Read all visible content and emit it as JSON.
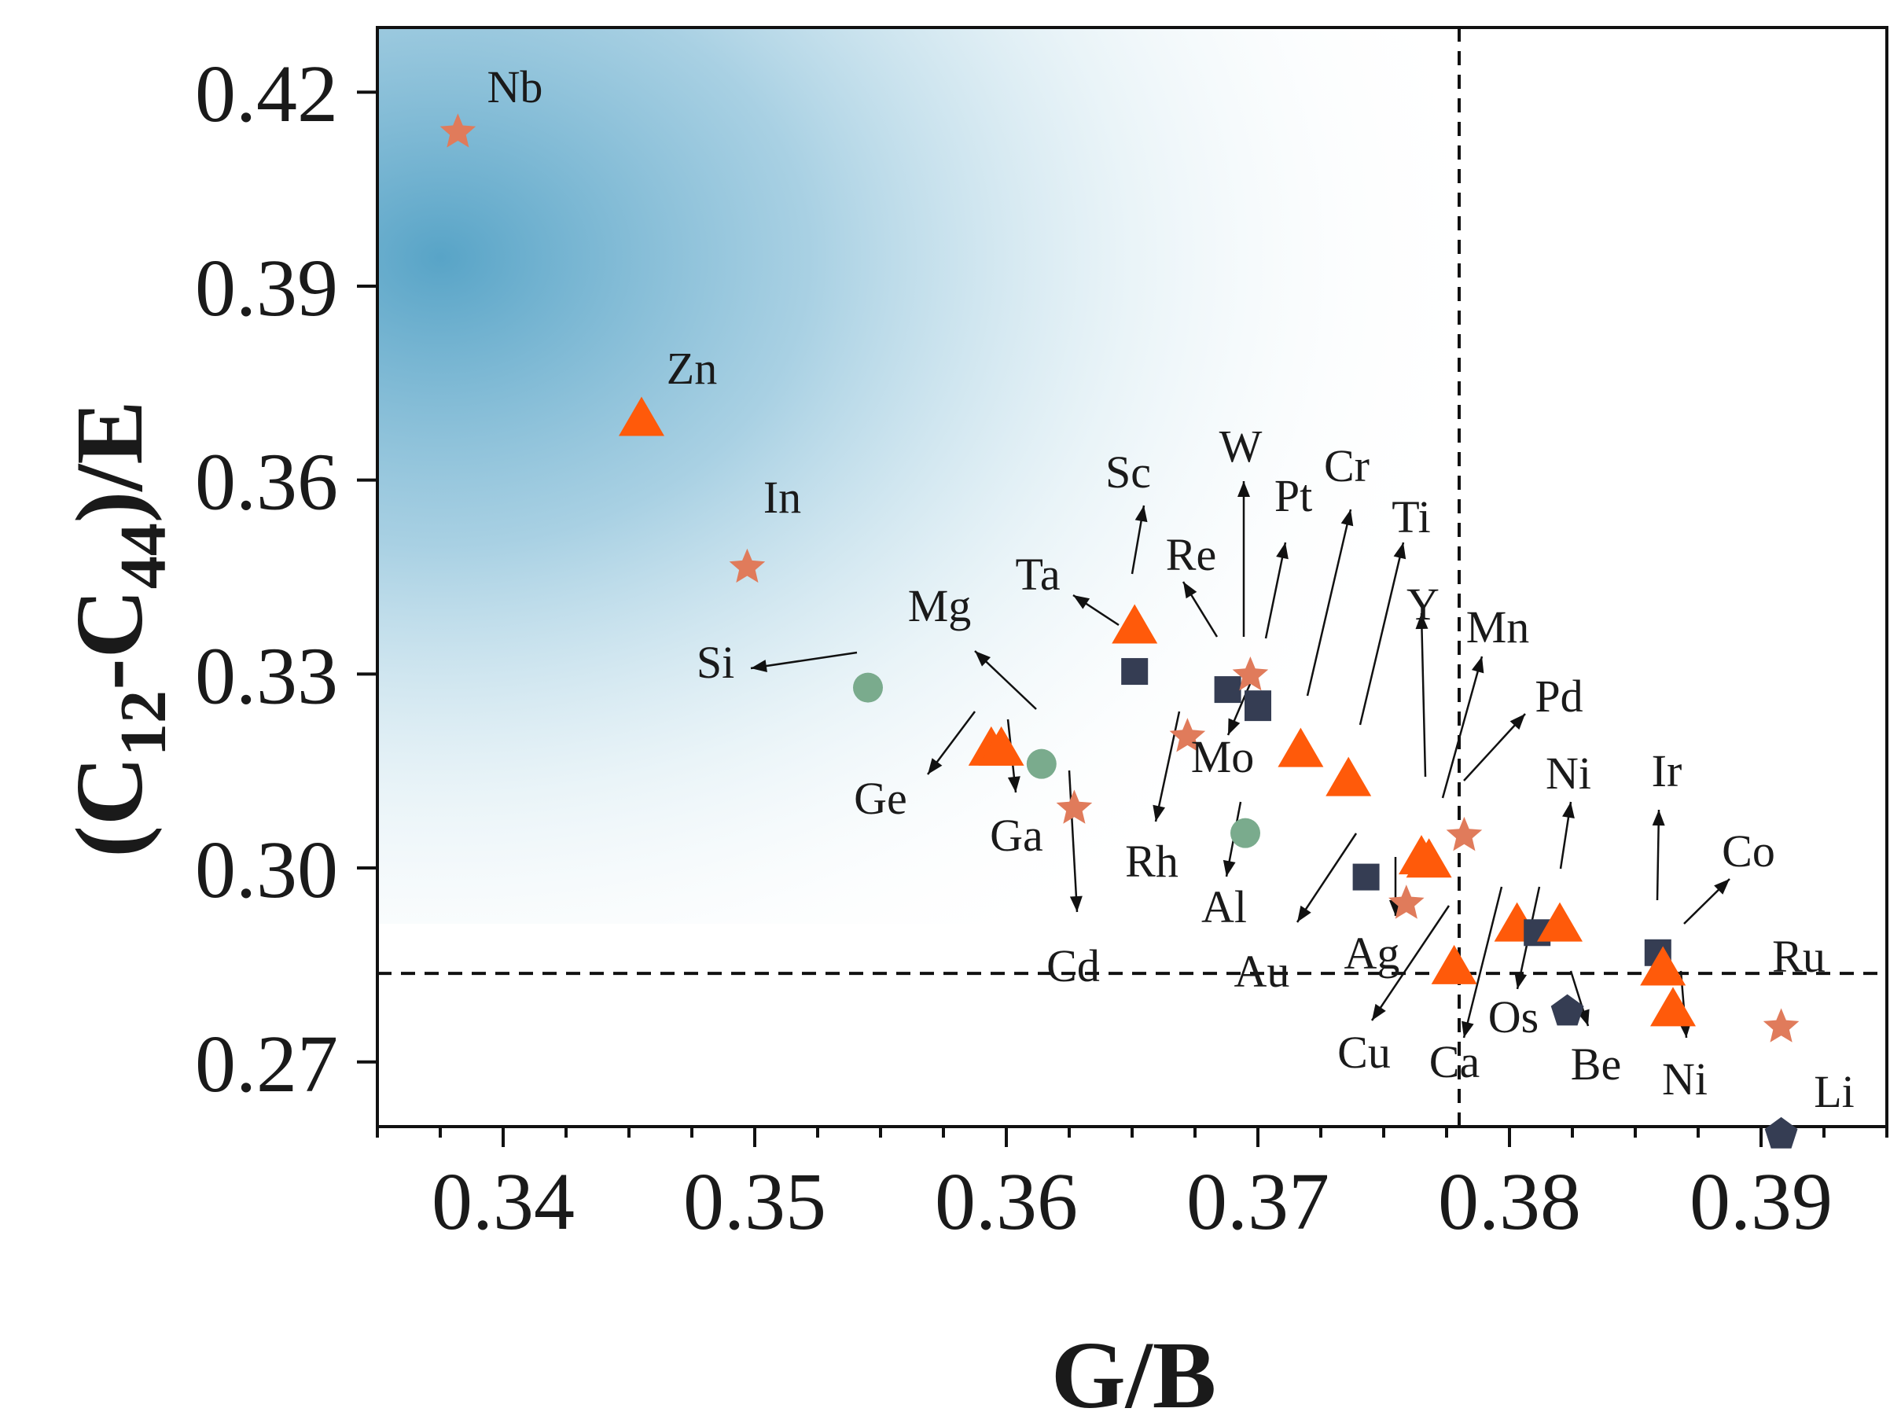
{
  "chart_data": {
    "type": "scatter",
    "title": "",
    "xlabel": "G/B",
    "ylabel": {
      "base": "(C",
      "sub1": "12",
      "mid": "-C",
      "sub2": "44",
      "tail": ")/E"
    },
    "xlim": [
      0.335,
      0.395
    ],
    "ylim": [
      0.26,
      0.43
    ],
    "x_ticks": [
      0.34,
      0.35,
      0.36,
      0.37,
      0.38,
      0.39
    ],
    "x_tick_labels": [
      "0.34",
      "0.35",
      "0.36",
      "0.37",
      "0.38",
      "0.39"
    ],
    "y_ticks": [
      0.27,
      0.3,
      0.33,
      0.36,
      0.39,
      0.42
    ],
    "y_tick_labels": [
      "0.27",
      "0.30",
      "0.33",
      "0.36",
      "0.39",
      "0.42"
    ],
    "thresholds": {
      "x": 0.378,
      "y": 0.2837
    },
    "background": "gradient highlight region, upper-left",
    "colors": {
      "star": "#e07b5b",
      "triangle": "#ff5a0a",
      "circle": "#7aab8d",
      "square": "#353d53",
      "pentagon": "#353d53",
      "bg": "#5fa9c9"
    },
    "points": [
      {
        "label": "Nb",
        "marker": "star",
        "x": 0.3382,
        "y": 0.4138
      },
      {
        "label": "Zn",
        "marker": "triangle",
        "x": 0.3455,
        "y": 0.3695
      },
      {
        "label": "In",
        "marker": "star",
        "x": 0.3497,
        "y": 0.3465
      },
      {
        "label": "Si",
        "marker": "circle",
        "x": 0.3545,
        "y": 0.3279
      },
      {
        "label": "Ge",
        "marker": "triangle",
        "x": 0.3594,
        "y": 0.3185
      },
      {
        "label": "Ga",
        "marker": "triangle",
        "x": 0.3598,
        "y": 0.3185
      },
      {
        "label": "Mg",
        "marker": "circle",
        "x": 0.3614,
        "y": 0.3161
      },
      {
        "label": "Cd",
        "marker": "star",
        "x": 0.3627,
        "y": 0.3092
      },
      {
        "label": "Sc",
        "marker": "triangle",
        "x": 0.3651,
        "y": 0.3374
      },
      {
        "label": "Ta",
        "marker": "square",
        "x": 0.3651,
        "y": 0.3304
      },
      {
        "label": "Rh",
        "marker": "star",
        "x": 0.3672,
        "y": 0.3203
      },
      {
        "label": "Re",
        "marker": "square",
        "x": 0.3688,
        "y": 0.3276
      },
      {
        "label": "W",
        "marker": "star",
        "x": 0.3697,
        "y": 0.3298
      },
      {
        "label": "Mo",
        "marker": "square",
        "x": 0.37,
        "y": 0.3254
      },
      {
        "label": "Pt",
        "marker": "square",
        "x": 0.37,
        "y": 0.3248
      },
      {
        "label": "Al",
        "marker": "circle",
        "x": 0.3695,
        "y": 0.3054
      },
      {
        "label": "Cr",
        "marker": "triangle",
        "x": 0.3717,
        "y": 0.3183
      },
      {
        "label": "Ti",
        "marker": "triangle",
        "x": 0.3736,
        "y": 0.3138
      },
      {
        "label": "Au",
        "marker": "square",
        "x": 0.3743,
        "y": 0.2986
      },
      {
        "label": "Ag",
        "marker": "star",
        "x": 0.3759,
        "y": 0.2945
      },
      {
        "label": "Y",
        "marker": "triangle",
        "x": 0.3765,
        "y": 0.3017
      },
      {
        "label": "Mn",
        "marker": "triangle",
        "x": 0.3768,
        "y": 0.3012
      },
      {
        "label": "Pd",
        "marker": "star",
        "x": 0.3782,
        "y": 0.305
      },
      {
        "label": "Cu",
        "marker": "triangle",
        "x": 0.3778,
        "y": 0.2847
      },
      {
        "label": "Ca",
        "marker": "triangle",
        "x": 0.3803,
        "y": 0.2913
      },
      {
        "label": "Os",
        "marker": "square",
        "x": 0.3811,
        "y": 0.29
      },
      {
        "label": "Ni",
        "marker": "triangle",
        "x": 0.382,
        "y": 0.2913
      },
      {
        "label": "Be",
        "marker": "pentagon",
        "x": 0.3823,
        "y": 0.2778
      },
      {
        "label": "Ir",
        "marker": "square",
        "x": 0.3859,
        "y": 0.2869
      },
      {
        "label": "Co",
        "marker": "triangle",
        "x": 0.3861,
        "y": 0.2845
      },
      {
        "label": "Ni",
        "marker": "triangle",
        "x": 0.3865,
        "y": 0.2782
      },
      {
        "label": "Ru",
        "marker": "star",
        "x": 0.3908,
        "y": 0.2754
      },
      {
        "label": "Li",
        "marker": "pentagon",
        "x": 0.3908,
        "y": 0.2588
      }
    ]
  }
}
